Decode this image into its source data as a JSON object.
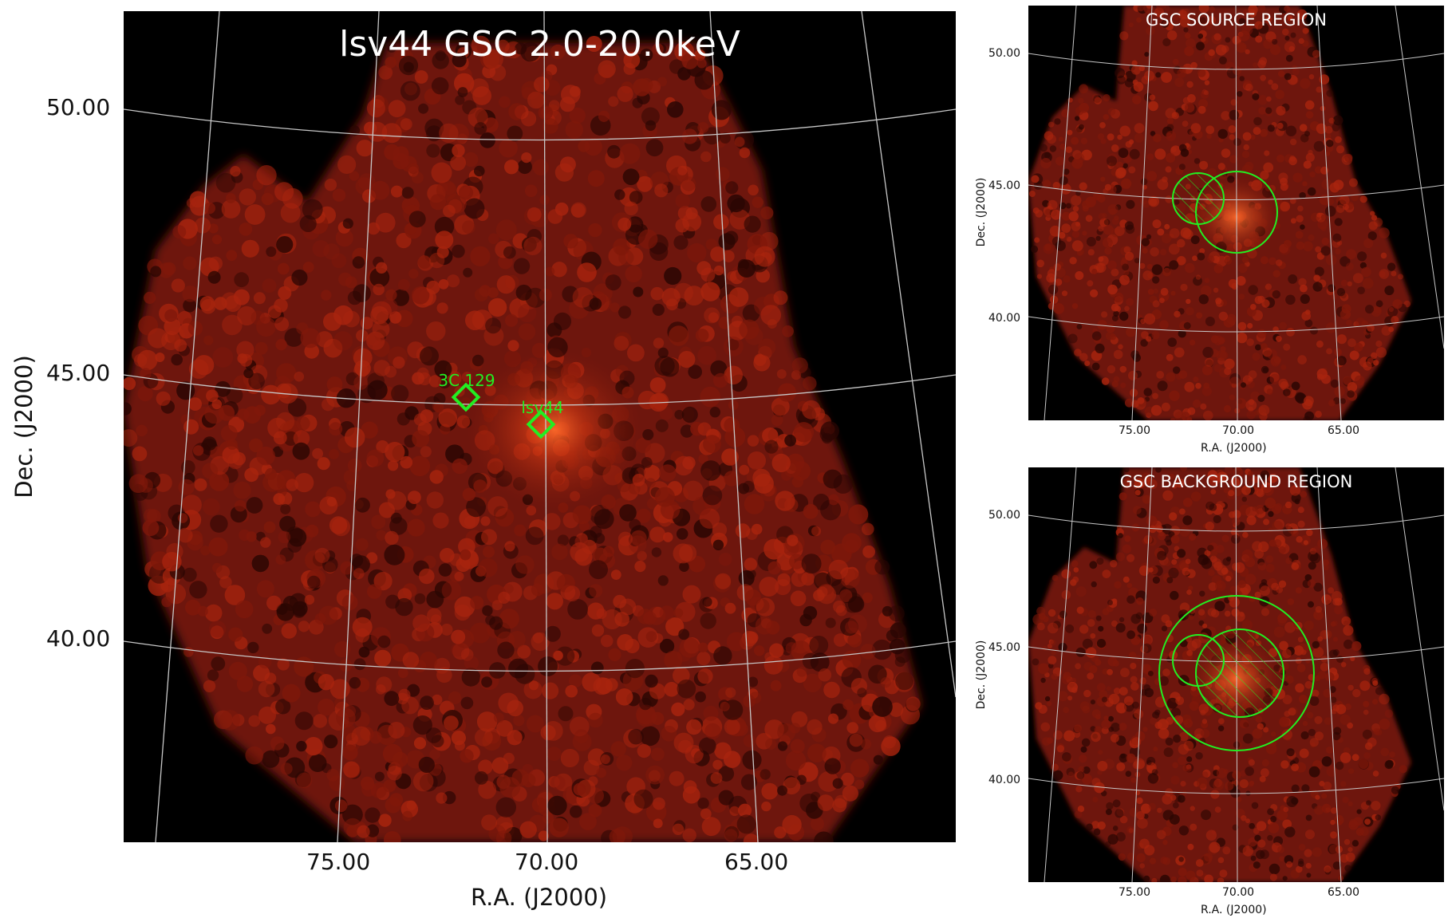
{
  "main_panel": {
    "title": "lsv44 GSC 2.0-20.0keV",
    "dec_ticks": [
      "50.00",
      "45.00",
      "40.00"
    ],
    "ra_ticks": [
      "75.00",
      "70.00",
      "65.00"
    ],
    "xlabel": "R.A. (J2000)",
    "ylabel": "Dec. (J2000)",
    "sources": [
      {
        "name": "3C 129"
      },
      {
        "name": "lsv44"
      }
    ]
  },
  "source_panel": {
    "title": "GSC SOURCE REGION",
    "dec_ticks": [
      "50.00",
      "45.00",
      "40.00"
    ],
    "ra_ticks": [
      "75.00",
      "70.00",
      "65.00"
    ],
    "xlabel": "R.A. (J2000)",
    "ylabel": "Dec. (J2000)"
  },
  "background_panel": {
    "title": "GSC BACKGROUND REGION",
    "dec_ticks": [
      "50.00",
      "45.00",
      "40.00"
    ],
    "ra_ticks": [
      "75.00",
      "70.00",
      "65.00"
    ],
    "xlabel": "R.A. (J2000)",
    "ylabel": "Dec. (J2000)"
  },
  "colors": {
    "background": "#000000",
    "emission": "#8b1a0a",
    "emission_bright": "#e0441c",
    "grid": "#c8c8c8",
    "region": "#22ee22",
    "text_on_image": "#ffffff"
  }
}
